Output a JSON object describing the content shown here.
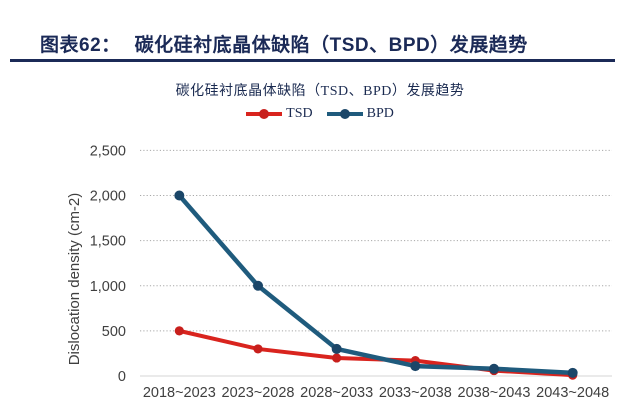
{
  "header": {
    "label": "图表62：",
    "title": "碳化硅衬底晶体缺陷（TSD、BPD）发展趋势"
  },
  "chart_data": {
    "type": "line",
    "title": "碳化硅衬底晶体缺陷（TSD、BPD）发展趋势",
    "xlabel": "",
    "ylabel": "Dislocation density (cm-2)",
    "ylim": [
      0,
      2500
    ],
    "ytick_step": 500,
    "yticks": [
      "0",
      "500",
      "1,000",
      "1,500",
      "2,000",
      "2,500"
    ],
    "grid": "horizontal-dotted",
    "legend_position": "top-center",
    "categories": [
      "2018~2023",
      "2023~2028",
      "2028~2033",
      "2033~2038",
      "2038~2043",
      "2043~2048"
    ],
    "series": [
      {
        "name": "TSD",
        "color": "#D9241E",
        "marker_color": "#C81F1C",
        "values": [
          500,
          300,
          200,
          170,
          60,
          10
        ]
      },
      {
        "name": "BPD",
        "color": "#1F5B7D",
        "marker_color": "#1B4668",
        "values": [
          2000,
          1000,
          300,
          110,
          80,
          35
        ]
      }
    ]
  },
  "colors": {
    "background": "#FFFFFF",
    "header_text": "#1B2A57",
    "header_rule": "#1B2A57",
    "chart_title_text": "#1A2A50",
    "tick_text": "#3F3F3F",
    "gridline": "#A8A8A8",
    "axis_line": "#D6D6D6"
  }
}
